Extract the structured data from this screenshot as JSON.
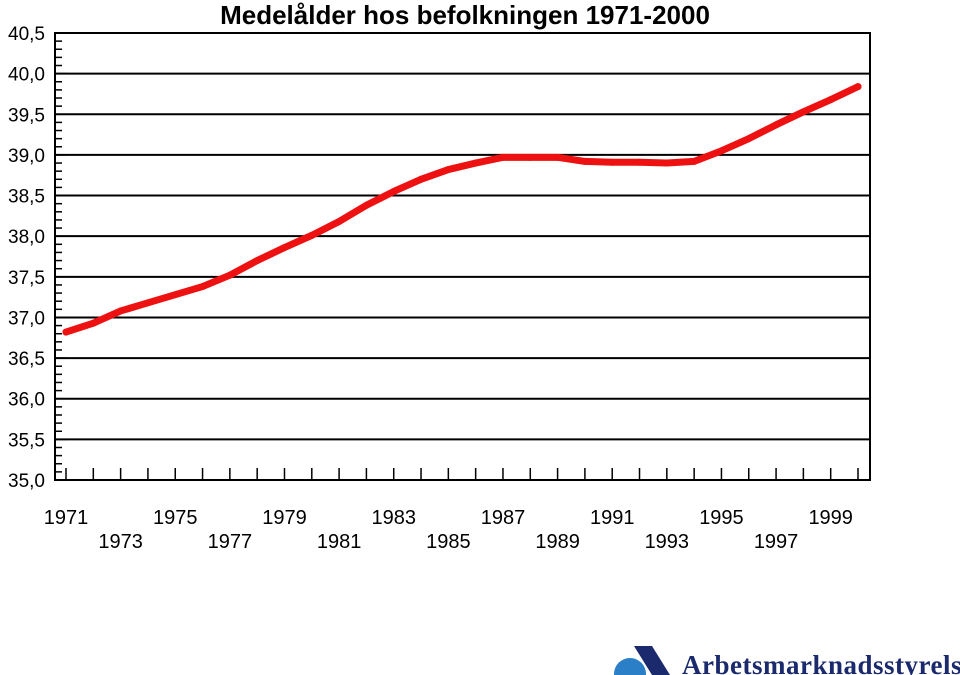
{
  "chart_data": {
    "type": "line",
    "title": "Medelålder hos befolkningen 1971-2000",
    "xlabel": "",
    "ylabel": "",
    "x": [
      1971,
      1972,
      1973,
      1974,
      1975,
      1976,
      1977,
      1978,
      1979,
      1980,
      1981,
      1982,
      1983,
      1984,
      1985,
      1986,
      1987,
      1988,
      1989,
      1990,
      1991,
      1992,
      1993,
      1994,
      1995,
      1996,
      1997,
      1998,
      1999,
      2000
    ],
    "x_tick_labels_upper": [
      "1971",
      "1975",
      "1979",
      "1983",
      "1987",
      "1991",
      "1995",
      "1999"
    ],
    "x_tick_labels_lower": [
      "1973",
      "1977",
      "1981",
      "1985",
      "1989",
      "1993",
      "1997"
    ],
    "y_tick_labels": [
      "35,0",
      "35,5",
      "36,0",
      "36,5",
      "37,0",
      "37,5",
      "38,0",
      "38,5",
      "39,0",
      "39,5",
      "40,0",
      "40,5"
    ],
    "ylim": [
      35.0,
      40.5
    ],
    "grid": true,
    "series": [
      {
        "color": "#ee1111",
        "values": [
          36.82,
          36.93,
          37.08,
          37.18,
          37.28,
          37.38,
          37.52,
          37.7,
          37.86,
          38.01,
          38.18,
          38.38,
          38.55,
          38.7,
          38.82,
          38.9,
          38.97,
          38.97,
          38.97,
          38.92,
          38.91,
          38.91,
          38.9,
          38.92,
          39.05,
          39.2,
          39.37,
          39.53,
          39.68,
          39.84
        ]
      }
    ]
  },
  "logo": {
    "text": "Arbetsmarknadsstyrelsen",
    "color": "#1a2a6c",
    "accent_color": "#2a7fc6"
  }
}
